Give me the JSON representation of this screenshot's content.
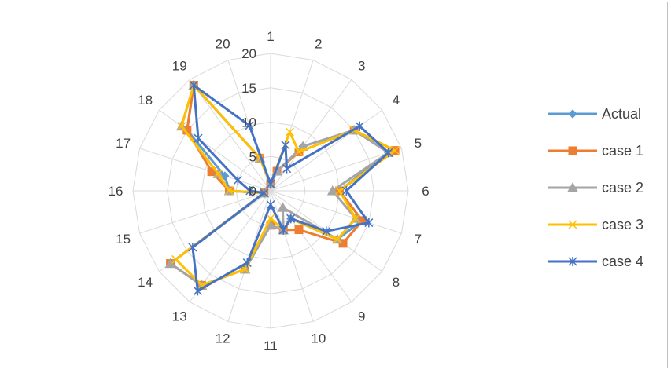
{
  "chart_data": {
    "type": "radar",
    "title": "",
    "categories": [
      "1",
      "2",
      "3",
      "4",
      "5",
      "6",
      "7",
      "8",
      "9",
      "10",
      "11",
      "12",
      "13",
      "14",
      "15",
      "16",
      "17",
      "18",
      "19",
      "20"
    ],
    "rlim": [
      0,
      20
    ],
    "r_ticks": [
      "0",
      "5",
      "10",
      "15",
      "20"
    ],
    "grid": true,
    "legend_position": "right",
    "series": [
      {
        "name": "Actual",
        "color": "#5b9bd5",
        "marker": "diamond",
        "values": [
          1,
          3,
          8,
          15,
          18,
          10,
          14,
          12,
          5,
          6,
          5,
          12,
          17,
          18,
          1,
          6,
          7,
          15,
          19,
          5
        ]
      },
      {
        "name": "case 1",
        "color": "#ed7d31",
        "marker": "square",
        "values": [
          1,
          3,
          7,
          15,
          19,
          10,
          14,
          13,
          7,
          6,
          5,
          12,
          17,
          18,
          1,
          6,
          9,
          15,
          19,
          5
        ]
      },
      {
        "name": "case 2",
        "color": "#a5a5a5",
        "marker": "triangle",
        "values": [
          1,
          3,
          8,
          15,
          18,
          9,
          13,
          12,
          3,
          6,
          5,
          12,
          17,
          18,
          1,
          6,
          8,
          16,
          19,
          5
        ]
      },
      {
        "name": "case 3",
        "color": "#ffc000",
        "marker": "x",
        "values": [
          1,
          9,
          7,
          15,
          19,
          10,
          13,
          12,
          5,
          6,
          4,
          12,
          17,
          17,
          1,
          6,
          8,
          16,
          19,
          5
        ]
      },
      {
        "name": "case 4",
        "color": "#4472c4",
        "marker": "star",
        "values": [
          1,
          7,
          4,
          16,
          18,
          11,
          15,
          10,
          5,
          6,
          2,
          11,
          18,
          14,
          1,
          3,
          5,
          13,
          19,
          10
        ]
      }
    ]
  }
}
